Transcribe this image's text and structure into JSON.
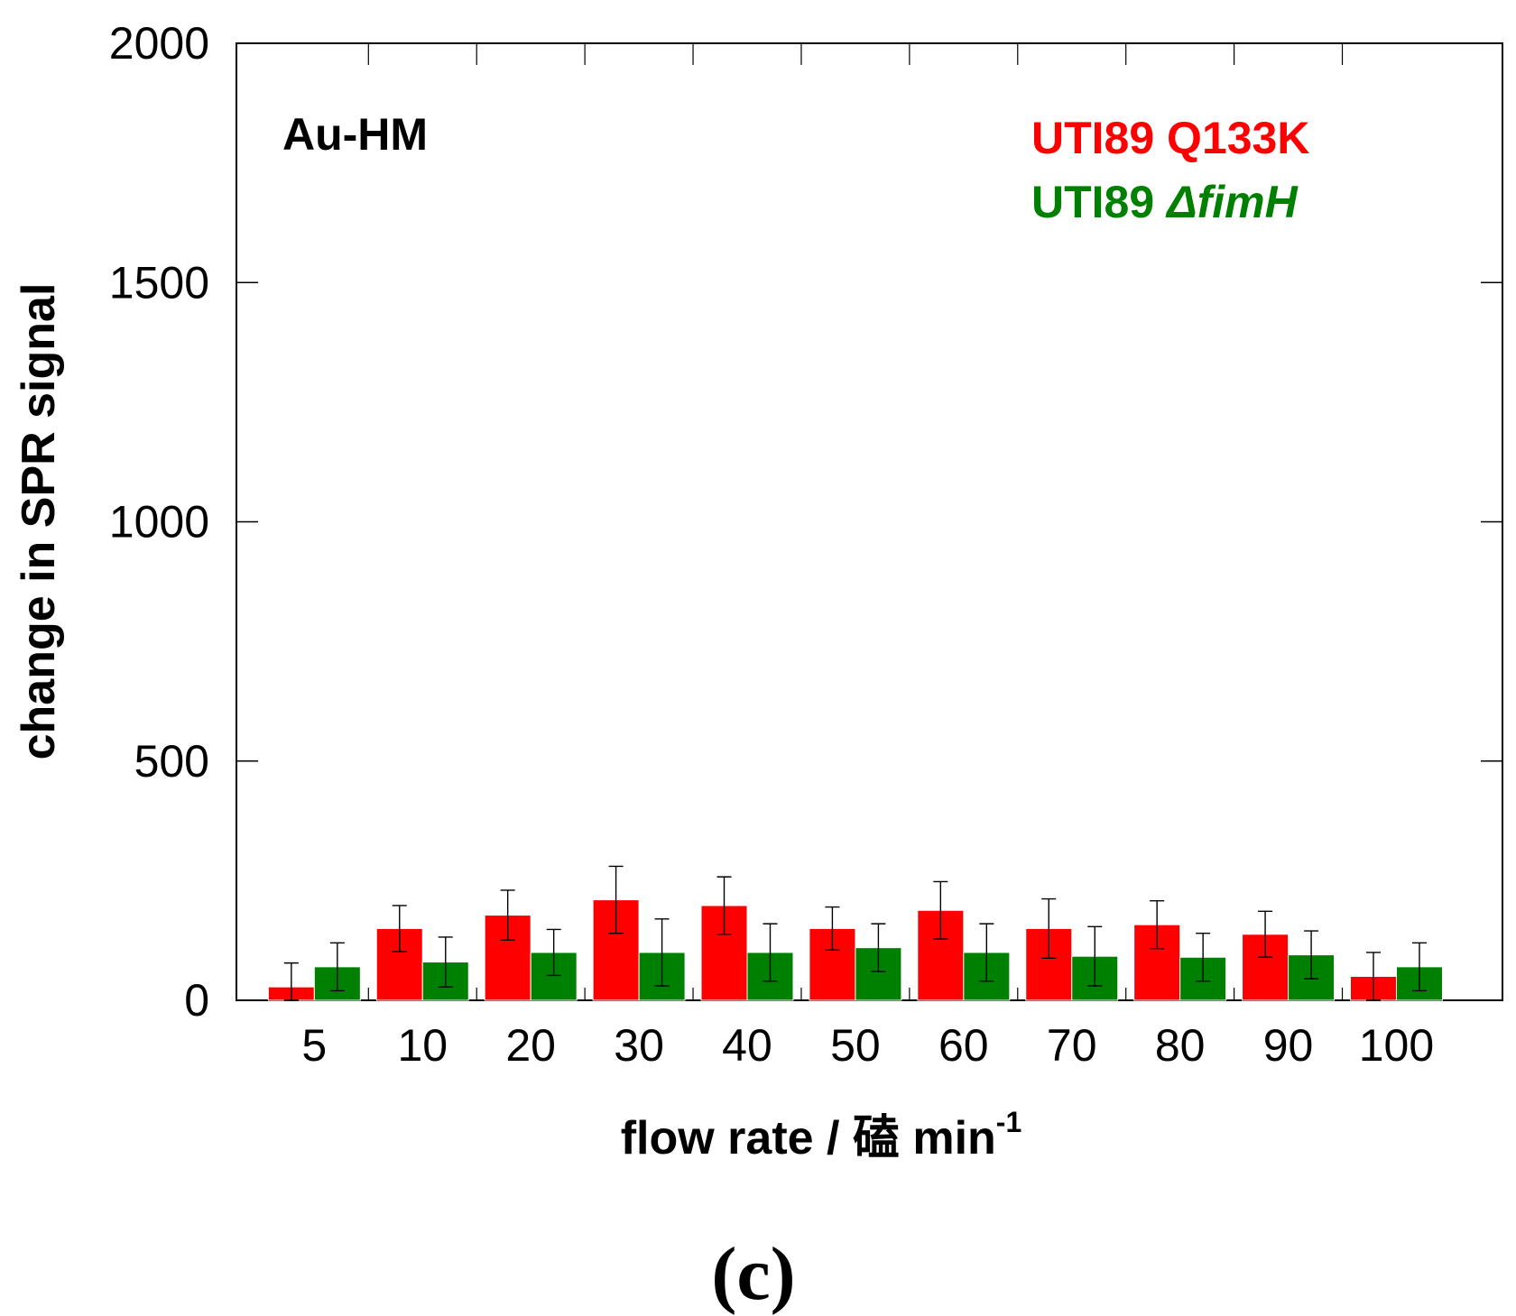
{
  "chart_data": {
    "type": "bar",
    "panel_label": "Au-HM",
    "xlabel": "flow rate / 磕 min",
    "xlabel_superscript": "-1",
    "ylabel": "change in SPR signal",
    "ylim": [
      0,
      2000
    ],
    "yticks": [
      "0",
      "500",
      "1000",
      "1500",
      "2000"
    ],
    "categories": [
      "5",
      "10",
      "20",
      "30",
      "40",
      "50",
      "60",
      "70",
      "80",
      "90",
      "100"
    ],
    "series": [
      {
        "name": "UTI89 Q133K",
        "color": "#ff0000",
        "values": [
          28,
          150,
          178,
          210,
          198,
          150,
          188,
          150,
          158,
          138,
          50
        ],
        "errors": [
          50,
          48,
          52,
          70,
          60,
          45,
          60,
          62,
          50,
          48,
          50
        ]
      },
      {
        "name": "UTI89 ΔfimH",
        "name_plain": "UTI89 ",
        "name_italic": "ΔfimH",
        "color": "#008000",
        "values": [
          70,
          80,
          100,
          100,
          100,
          110,
          100,
          92,
          90,
          95,
          70
        ],
        "errors": [
          50,
          52,
          48,
          70,
          60,
          50,
          60,
          62,
          50,
          50,
          50
        ]
      }
    ],
    "legend_position": "top-right",
    "grid": false,
    "caption": "(c)"
  }
}
